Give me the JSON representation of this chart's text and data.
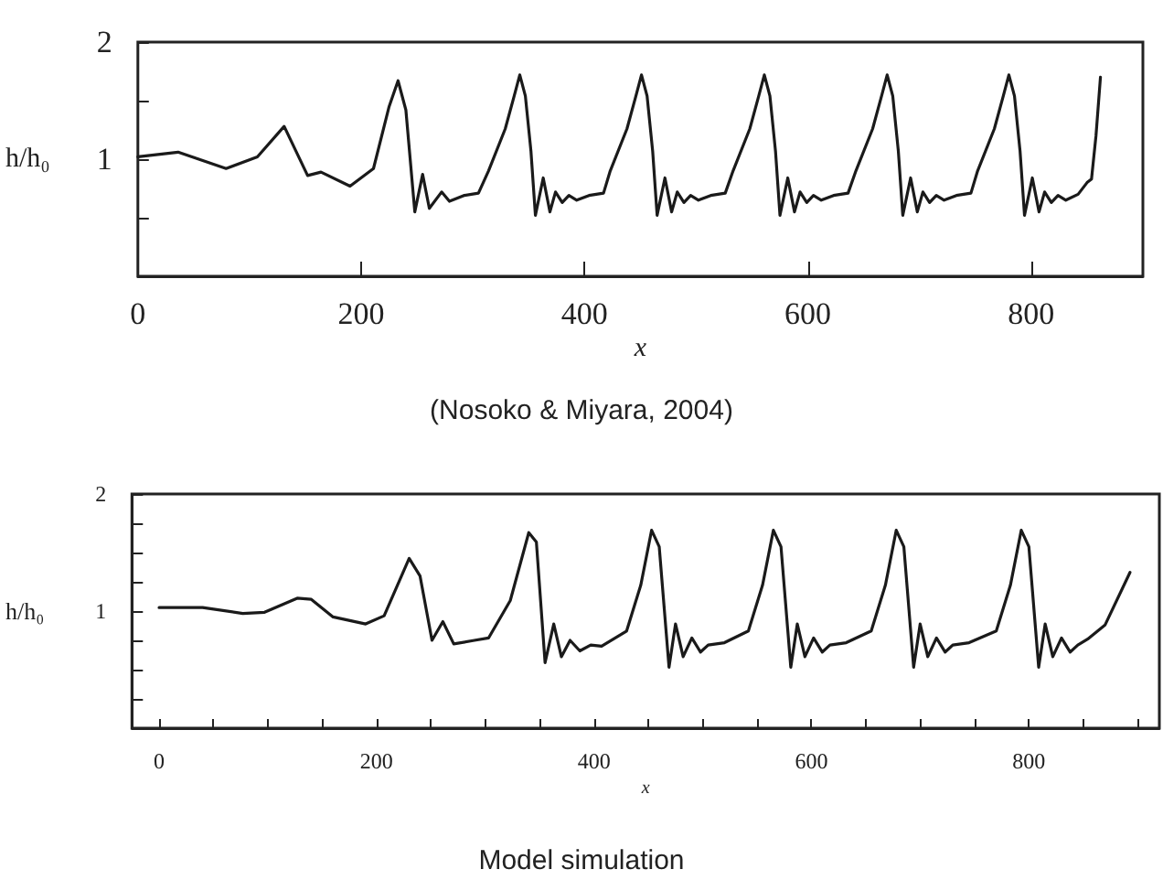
{
  "chart_data": [
    {
      "type": "line",
      "title": "(Nosoko & Miyara, 2004)",
      "xlabel": "x",
      "ylabel": "h/h₀",
      "xlim": [
        0,
        900
      ],
      "ylim": [
        0,
        2
      ],
      "xticks": [
        0,
        200,
        400,
        600,
        800
      ],
      "yticks": [
        {
          "value": 0,
          "label": null
        },
        {
          "value": 0.5,
          "label": null
        },
        {
          "value": 1,
          "label": "1"
        },
        {
          "value": 1.5,
          "label": null
        },
        {
          "value": 2,
          "label": "2"
        }
      ],
      "grid": false,
      "marker": "none",
      "line_style": "solid",
      "series": [
        {
          "color": "#1a1a1a",
          "x": [
            0,
            36,
            79,
            107,
            131,
            152,
            164,
            190,
            211,
            225,
            233,
            240,
            248,
            255,
            261,
            272,
            279,
            292,
            305,
            314,
            329,
            337,
            342,
            347,
            352,
            356,
            363,
            369,
            374,
            380,
            386,
            393,
            404,
            417,
            423,
            438,
            446,
            451,
            456,
            461,
            465,
            472,
            478,
            483,
            489,
            495,
            502,
            513,
            526,
            533,
            548,
            556,
            561,
            566,
            571,
            575,
            582,
            588,
            593,
            599,
            605,
            612,
            623,
            636,
            643,
            658,
            666,
            671,
            676,
            681,
            685,
            692,
            698,
            703,
            709,
            715,
            722,
            733,
            746,
            752,
            767,
            775,
            780,
            785,
            790,
            794,
            801,
            807,
            812,
            818,
            824,
            831,
            842,
            850,
            854,
            858,
            862
          ],
          "values": [
            1.02,
            1.06,
            0.92,
            1.02,
            1.28,
            0.86,
            0.89,
            0.77,
            0.92,
            1.45,
            1.67,
            1.42,
            0.55,
            0.87,
            0.58,
            0.72,
            0.64,
            0.69,
            0.71,
            0.9,
            1.26,
            1.54,
            1.72,
            1.54,
            1.07,
            0.52,
            0.84,
            0.55,
            0.72,
            0.63,
            0.69,
            0.65,
            0.69,
            0.71,
            0.9,
            1.26,
            1.54,
            1.72,
            1.54,
            1.07,
            0.52,
            0.84,
            0.55,
            0.72,
            0.63,
            0.69,
            0.65,
            0.69,
            0.71,
            0.9,
            1.26,
            1.54,
            1.72,
            1.54,
            1.07,
            0.52,
            0.84,
            0.55,
            0.72,
            0.63,
            0.69,
            0.65,
            0.69,
            0.71,
            0.9,
            1.26,
            1.54,
            1.72,
            1.54,
            1.07,
            0.52,
            0.84,
            0.55,
            0.72,
            0.63,
            0.69,
            0.65,
            0.69,
            0.71,
            0.9,
            1.26,
            1.54,
            1.72,
            1.54,
            1.07,
            0.52,
            0.84,
            0.55,
            0.72,
            0.63,
            0.69,
            0.65,
            0.7,
            0.8,
            0.83,
            1.2,
            1.7
          ]
        }
      ]
    },
    {
      "type": "line",
      "title": "Model simulation",
      "xlabel": "x",
      "ylabel": "h/h₀",
      "xlim": [
        -25,
        920
      ],
      "ylim": [
        0,
        2
      ],
      "xticks": [
        0,
        {
          "value": 50,
          "label": null
        },
        {
          "value": 100,
          "label": null
        },
        {
          "value": 150,
          "label": null
        },
        200,
        {
          "value": 250,
          "label": null
        },
        {
          "value": 300,
          "label": null
        },
        {
          "value": 350,
          "label": null
        },
        400,
        {
          "value": 450,
          "label": null
        },
        {
          "value": 500,
          "label": null
        },
        {
          "value": 550,
          "label": null
        },
        600,
        {
          "value": 650,
          "label": null
        },
        {
          "value": 700,
          "label": null
        },
        {
          "value": 750,
          "label": null
        },
        800,
        {
          "value": 850,
          "label": null
        },
        {
          "value": 900,
          "label": null
        }
      ],
      "yticks": [
        {
          "value": 0,
          "label": null
        },
        {
          "value": 0.25,
          "label": null
        },
        {
          "value": 0.5,
          "label": null
        },
        {
          "value": 0.75,
          "label": null
        },
        1,
        {
          "value": 1.25,
          "label": null
        },
        {
          "value": 1.5,
          "label": null
        },
        {
          "value": 1.75,
          "label": null
        },
        2
      ],
      "grid": false,
      "marker": "none",
      "line_style": "solid",
      "series": [
        {
          "color": "#1a1a1a",
          "x": [
            0,
            40,
            77,
            97,
            127,
            140,
            160,
            190,
            207,
            230,
            240,
            251,
            261,
            271,
            290,
            303,
            323,
            340,
            347,
            355,
            363,
            370,
            378,
            387,
            397,
            407,
            430,
            443,
            453,
            460,
            469,
            475,
            482,
            490,
            498,
            505,
            520,
            542,
            555,
            565,
            572,
            581,
            587,
            594,
            602,
            610,
            617,
            632,
            655,
            668,
            678,
            685,
            694,
            700,
            707,
            715,
            723,
            730,
            745,
            770,
            783,
            793,
            800,
            809,
            815,
            822,
            830,
            838,
            845,
            854,
            870,
            893
          ],
          "values": [
            1.03,
            1.03,
            0.98,
            0.99,
            1.11,
            1.1,
            0.95,
            0.89,
            0.96,
            1.45,
            1.3,
            0.75,
            0.91,
            0.72,
            0.75,
            0.77,
            1.09,
            1.67,
            1.59,
            0.56,
            0.89,
            0.61,
            0.75,
            0.66,
            0.71,
            0.7,
            0.83,
            1.22,
            1.69,
            1.55,
            0.52,
            0.89,
            0.61,
            0.77,
            0.65,
            0.71,
            0.73,
            0.83,
            1.22,
            1.69,
            1.55,
            0.52,
            0.89,
            0.61,
            0.77,
            0.65,
            0.71,
            0.73,
            0.83,
            1.22,
            1.69,
            1.55,
            0.52,
            0.89,
            0.61,
            0.77,
            0.65,
            0.71,
            0.73,
            0.83,
            1.22,
            1.69,
            1.55,
            0.52,
            0.89,
            0.61,
            0.77,
            0.65,
            0.71,
            0.76,
            0.88,
            1.33
          ]
        }
      ]
    }
  ]
}
